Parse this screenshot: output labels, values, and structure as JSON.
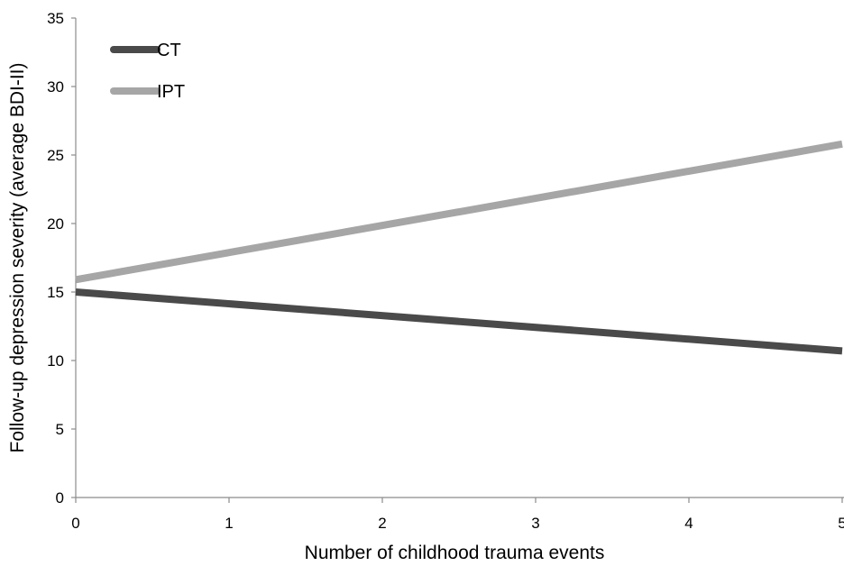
{
  "chart_data": {
    "type": "line",
    "title": "",
    "xlabel": "Number of childhood trauma events",
    "ylabel": "Follow-up depression severity (average BDI-II)",
    "x": [
      0,
      5
    ],
    "xlim": [
      0,
      5
    ],
    "ylim": [
      0,
      35
    ],
    "xticks": [
      0,
      1,
      2,
      3,
      4,
      5
    ],
    "yticks": [
      0,
      5,
      10,
      15,
      20,
      25,
      30,
      35
    ],
    "grid": false,
    "legend_position": "top-left",
    "series": [
      {
        "name": "CT",
        "values": [
          15.0,
          10.7
        ],
        "color": "#4a4a4a"
      },
      {
        "name": "IPT",
        "values": [
          15.9,
          25.8
        ],
        "color": "#a6a6a6"
      }
    ]
  }
}
